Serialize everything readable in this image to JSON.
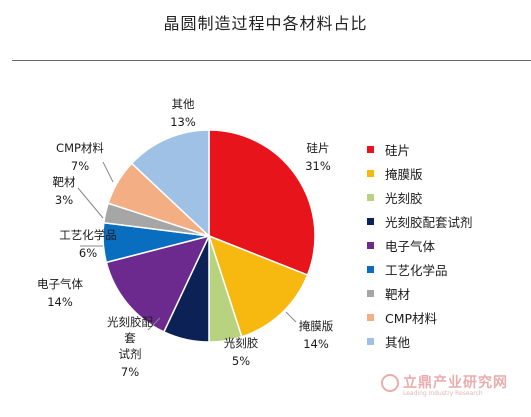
{
  "title": "晶圆制造过程中各材料占比",
  "colors": {
    "rule": "#666666"
  },
  "chart_data": {
    "type": "pie",
    "title": "晶圆制造过程中各材料占比",
    "slices": [
      {
        "name": "硅片",
        "label": "硅片",
        "percent_label": "31%",
        "value": 31,
        "color": "#e8141b"
      },
      {
        "name": "掩膜版",
        "label": "掩膜版",
        "percent_label": "14%",
        "value": 14,
        "color": "#f7b90f"
      },
      {
        "name": "光刻胶",
        "label": "光刻胶",
        "percent_label": "5%",
        "value": 5,
        "color": "#b9d27f"
      },
      {
        "name": "光刻胶配套试剂",
        "label": "光刻胶配\n套\n试剂",
        "percent_label": "7%",
        "value": 7,
        "color": "#0c2257"
      },
      {
        "name": "电子气体",
        "label": "电子气体",
        "percent_label": "14%",
        "value": 14,
        "color": "#6c2a8f"
      },
      {
        "name": "工艺化学品",
        "label": "工艺化学品",
        "percent_label": "6%",
        "value": 6,
        "color": "#0a6ec0"
      },
      {
        "name": "靶材",
        "label": "靶材",
        "percent_label": "3%",
        "value": 3,
        "color": "#a6a6a6"
      },
      {
        "name": "CMP材料",
        "label": "CMP材料",
        "percent_label": "7%",
        "value": 7,
        "color": "#f3ae84"
      },
      {
        "name": "其他",
        "label": "其他",
        "percent_label": "13%",
        "value": 13,
        "color": "#9fc1e6"
      }
    ],
    "legend": {
      "position": "right",
      "entries": [
        "硅片",
        "掩膜版",
        "光刻胶",
        "光刻胶配套试剂",
        "电子气体",
        "工艺化学品",
        "靶材",
        "CMP材料",
        "其他"
      ]
    }
  },
  "watermark": {
    "text": "立鼎产业研究网",
    "subtext": "Leading Industry Research"
  }
}
